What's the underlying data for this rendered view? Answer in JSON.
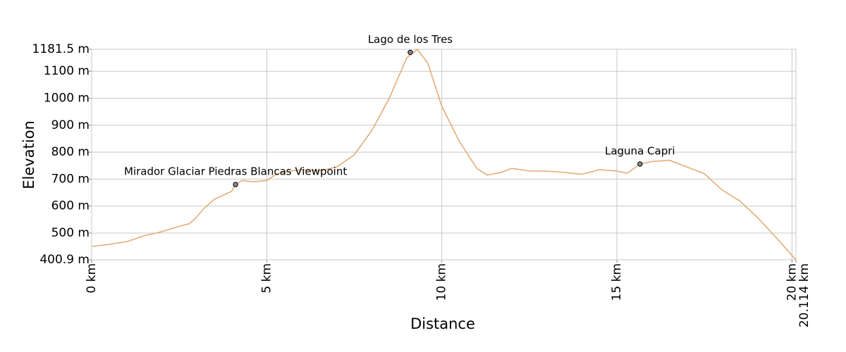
{
  "chart_data": {
    "type": "line",
    "xlabel": "Distance",
    "ylabel": "Elevation",
    "xlim": [
      0,
      20.114
    ],
    "ylim": [
      400.9,
      1181.5
    ],
    "xticks": [
      {
        "value": 0,
        "label": "0 km"
      },
      {
        "value": 5,
        "label": "5 km"
      },
      {
        "value": 10,
        "label": "10 km"
      },
      {
        "value": 15,
        "label": "15 km"
      },
      {
        "value": 20,
        "label": "20 km"
      },
      {
        "value": 20.114,
        "label": "20.114 km"
      }
    ],
    "yticks": [
      {
        "value": 400.9,
        "label": "400.9 m"
      },
      {
        "value": 500,
        "label": "500 m"
      },
      {
        "value": 600,
        "label": "600 m"
      },
      {
        "value": 700,
        "label": "700 m"
      },
      {
        "value": 800,
        "label": "800 m"
      },
      {
        "value": 900,
        "label": "900 m"
      },
      {
        "value": 1000,
        "label": "1000 m"
      },
      {
        "value": 1100,
        "label": "1100 m"
      },
      {
        "value": 1181.5,
        "label": "1181.5 m"
      }
    ],
    "grid": true,
    "x": [
      0,
      0.5,
      1.0,
      1.5,
      2.0,
      2.5,
      2.8,
      3.0,
      3.2,
      3.5,
      4.0,
      4.1,
      4.3,
      4.6,
      5.0,
      5.3,
      5.7,
      6.0,
      6.5,
      7.0,
      7.5,
      8.0,
      8.5,
      9.0,
      9.3,
      9.6,
      10.0,
      10.5,
      11.0,
      11.3,
      11.7,
      12.0,
      12.5,
      13.0,
      13.5,
      14.0,
      14.5,
      15.0,
      15.3,
      15.66,
      16.0,
      16.5,
      17.0,
      17.5,
      18.0,
      18.5,
      19.0,
      19.5,
      20.114
    ],
    "series": [
      {
        "color": "#e2a870",
        "values": [
          450,
          458,
          468,
          490,
          505,
          525,
          535,
          560,
          590,
          625,
          655,
          680,
          695,
          690,
          695,
          720,
          730,
          735,
          730,
          745,
          790,
          880,
          1000,
          1150,
          1181.5,
          1130,
          970,
          840,
          740,
          715,
          725,
          740,
          730,
          730,
          725,
          718,
          735,
          730,
          722,
          756,
          765,
          770,
          745,
          720,
          660,
          620,
          560,
          490,
          400.9
        ]
      }
    ],
    "annotations": [
      {
        "label": "Mirador Glaciar Piedras Blancas Viewpoint",
        "x": 4.11,
        "y": 680
      },
      {
        "label": "Lago de los Tres",
        "x": 9.1,
        "y": 1170
      },
      {
        "label": "Laguna Capri",
        "x": 15.66,
        "y": 756
      }
    ]
  }
}
